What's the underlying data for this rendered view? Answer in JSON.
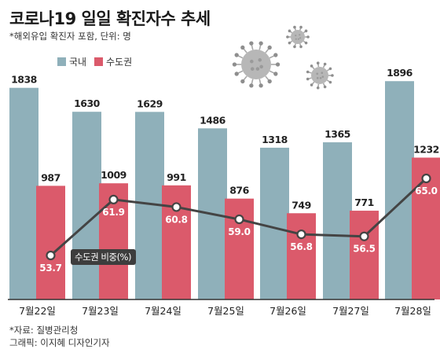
{
  "header": {
    "title": "코로나19 일일 확진자수 추세",
    "subtitle": "*해외유입 확진자 포함, 단위: 명"
  },
  "footer": {
    "source": "*자료: 질병관리청",
    "credit": "그래픽: 이지혜 디자인기자"
  },
  "colors": {
    "domestic": "#8fb0ba",
    "capital": "#db5a6b",
    "line": "#444444",
    "axis": "#333333",
    "virus": "#a9a9a9"
  },
  "icons": [
    "coronavirus-icon",
    "coronavirus-icon",
    "coronavirus-icon"
  ],
  "chart_data": {
    "type": "bar",
    "categories": [
      "7월22일",
      "7월23일",
      "7월24일",
      "7월25일",
      "7월26일",
      "7월27일",
      "7월28일"
    ],
    "series": [
      {
        "name": "국내",
        "values": [
          1838,
          1630,
          1629,
          1486,
          1318,
          1365,
          1896
        ]
      },
      {
        "name": "수도권",
        "values": [
          987,
          1009,
          991,
          876,
          749,
          771,
          1232
        ]
      }
    ],
    "line_series": {
      "name": "수도권 비중(%)",
      "values": [
        53.7,
        61.9,
        60.8,
        59.0,
        56.8,
        56.5,
        65.0
      ],
      "labels": [
        "53.7",
        "61.9",
        "60.8",
        "59.0",
        "56.8",
        "56.5",
        "65.0"
      ]
    },
    "legend_position": "top-left",
    "grid": false
  }
}
